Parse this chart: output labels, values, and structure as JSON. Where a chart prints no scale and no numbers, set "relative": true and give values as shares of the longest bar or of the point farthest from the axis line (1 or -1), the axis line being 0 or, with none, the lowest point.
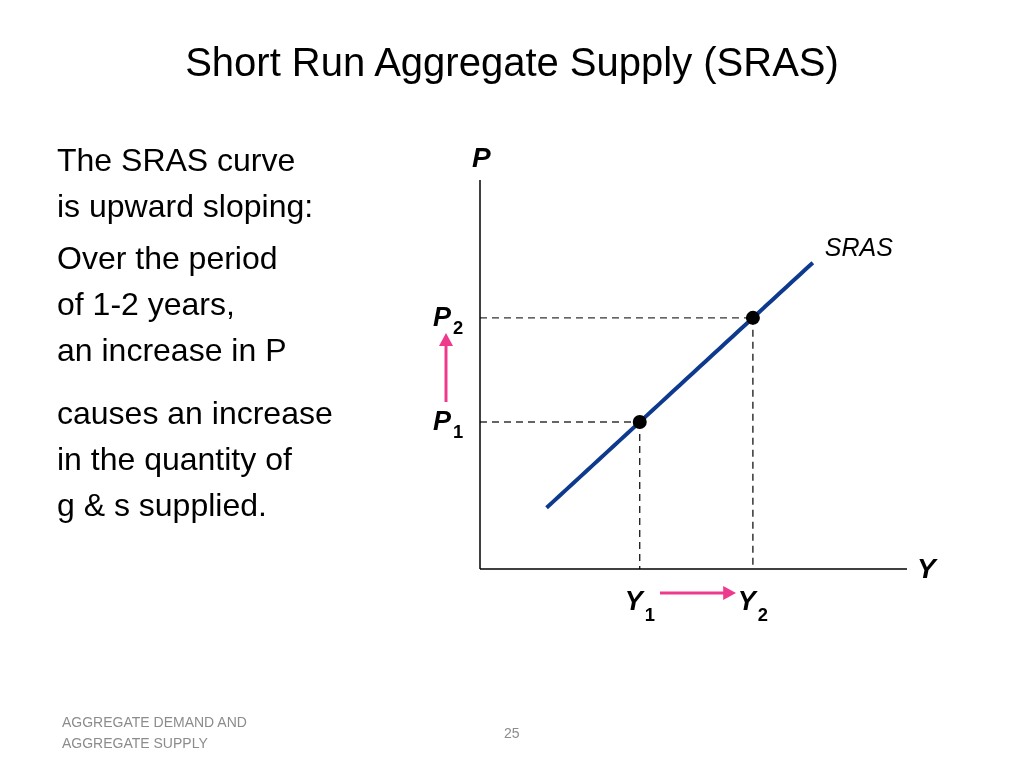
{
  "chart_data": {
    "type": "line",
    "title": "Short Run Aggregate Supply (SRAS)",
    "xlabel": "Y",
    "ylabel": "P",
    "relative": true,
    "categories": [
      null,
      null,
      null,
      null,
      null,
      null,
      null,
      null,
      null,
      null,
      null,
      null,
      null,
      null,
      null,
      null,
      null,
      null,
      null,
      null,
      null,
      null,
      null,
      null,
      "Y$_{1}$",
      null,
      null,
      null,
      null,
      null,
      null,
      null,
      null,
      null,
      null,
      null,
      null,
      null,
      null,
      null,
      null,
      "Y$_{2}$",
      null,
      null,
      null,
      null,
      null,
      null,
      null,
      null,
      null,
      null,
      null,
      null,
      null,
      null,
      null,
      null,
      null,
      null,
      null,
      null,
      null,
      null,
      null
    ],
    "series": [
      {
        "name": "SRAS",
        "color": "#0d3a8e",
        "values": [
          null,
          null,
          null,
          null,
          null,
          null,
          null,
          null,
          null,
          null,
          0.2,
          0.22,
          0.24,
          0.26,
          0.28,
          0.3,
          0.32,
          0.34,
          0.36,
          0.38,
          0.4,
          0.42,
          0.44,
          0.46,
          0.48,
          0.5,
          0.52,
          0.54,
          0.56,
          0.58,
          0.6,
          0.62,
          0.64,
          0.66,
          0.68,
          0.7,
          0.72,
          0.74,
          0.76,
          0.78,
          0.8,
          0.82,
          0.84,
          0.86,
          0.88,
          0.9,
          0.92,
          0.94,
          0.96,
          0.98,
          1,
          null,
          null,
          null,
          null,
          null,
          null,
          null,
          null,
          null,
          null,
          null,
          null,
          null,
          null
        ],
        "marker": "none",
        "line_style": "solid"
      },
      {
        "color": "#333333",
        "values": [
          0.48,
          0.48,
          0.48,
          0.48,
          0.48,
          0.48,
          0.48,
          0.48,
          0.48,
          0.48,
          0.48,
          0.48,
          0.48,
          0.48,
          0.48,
          0.48,
          0.48,
          0.48,
          0.48,
          0.48,
          0.48,
          0.48,
          0.48,
          0.48,
          0.48,
          null,
          null,
          null,
          null,
          null,
          null,
          null,
          null,
          null,
          null,
          null,
          null,
          null,
          null,
          null,
          null,
          null,
          null,
          null,
          null,
          null,
          null,
          null,
          null,
          null,
          null,
          null,
          null,
          null,
          null,
          null,
          null,
          null,
          null,
          null,
          null,
          null,
          null,
          null,
          null
        ],
        "marker": "none",
        "line_style": "dashed"
      },
      {
        "color": "#333333",
        "values": [
          0.82,
          0.82,
          0.82,
          0.82,
          0.82,
          0.82,
          0.82,
          0.82,
          0.82,
          0.82,
          0.82,
          0.82,
          0.82,
          0.82,
          0.82,
          0.82,
          0.82,
          0.82,
          0.82,
          0.82,
          0.82,
          0.82,
          0.82,
          0.82,
          0.82,
          0.82,
          0.82,
          0.82,
          0.82,
          0.82,
          0.82,
          0.82,
          0.82,
          0.82,
          0.82,
          0.82,
          0.82,
          0.82,
          0.82,
          0.82,
          0.82,
          0.82,
          null,
          null,
          null,
          null,
          null,
          null,
          null,
          null,
          null,
          null,
          null,
          null,
          null,
          null,
          null,
          null,
          null,
          null,
          null,
          null,
          null,
          null,
          null
        ],
        "marker": "none",
        "line_style": "dashed"
      },
      {
        "type": "lollipop",
        "color": "#000000",
        "values": [
          null,
          null,
          null,
          null,
          null,
          null,
          null,
          null,
          null,
          null,
          null,
          null,
          null,
          null,
          null,
          null,
          null,
          null,
          null,
          null,
          null,
          null,
          null,
          null,
          0.48,
          null,
          null,
          null,
          null,
          null,
          null,
          null,
          null,
          null,
          null,
          null,
          null,
          null,
          null,
          null,
          null,
          0.82,
          null,
          null,
          null,
          null,
          null,
          null,
          null,
          null,
          null,
          null,
          null,
          null,
          null,
          null,
          null,
          null,
          null,
          null,
          null,
          null,
          null,
          null,
          null
        ],
        "marker": "circle",
        "line_style": "dashed"
      }
    ],
    "annotations": [
      "The SRAS curve\nis upward sloping:",
      "Over the period\nof 1-2 years,\nan increase in P",
      "causes an increase\nin the quantity of\ng & s supplied.",
      "AGGREGATE DEMAND AND\nAGGREGATE SUPPLY",
      "25",
      "P$_{1}$",
      "P$_{2}$"
    ]
  }
}
